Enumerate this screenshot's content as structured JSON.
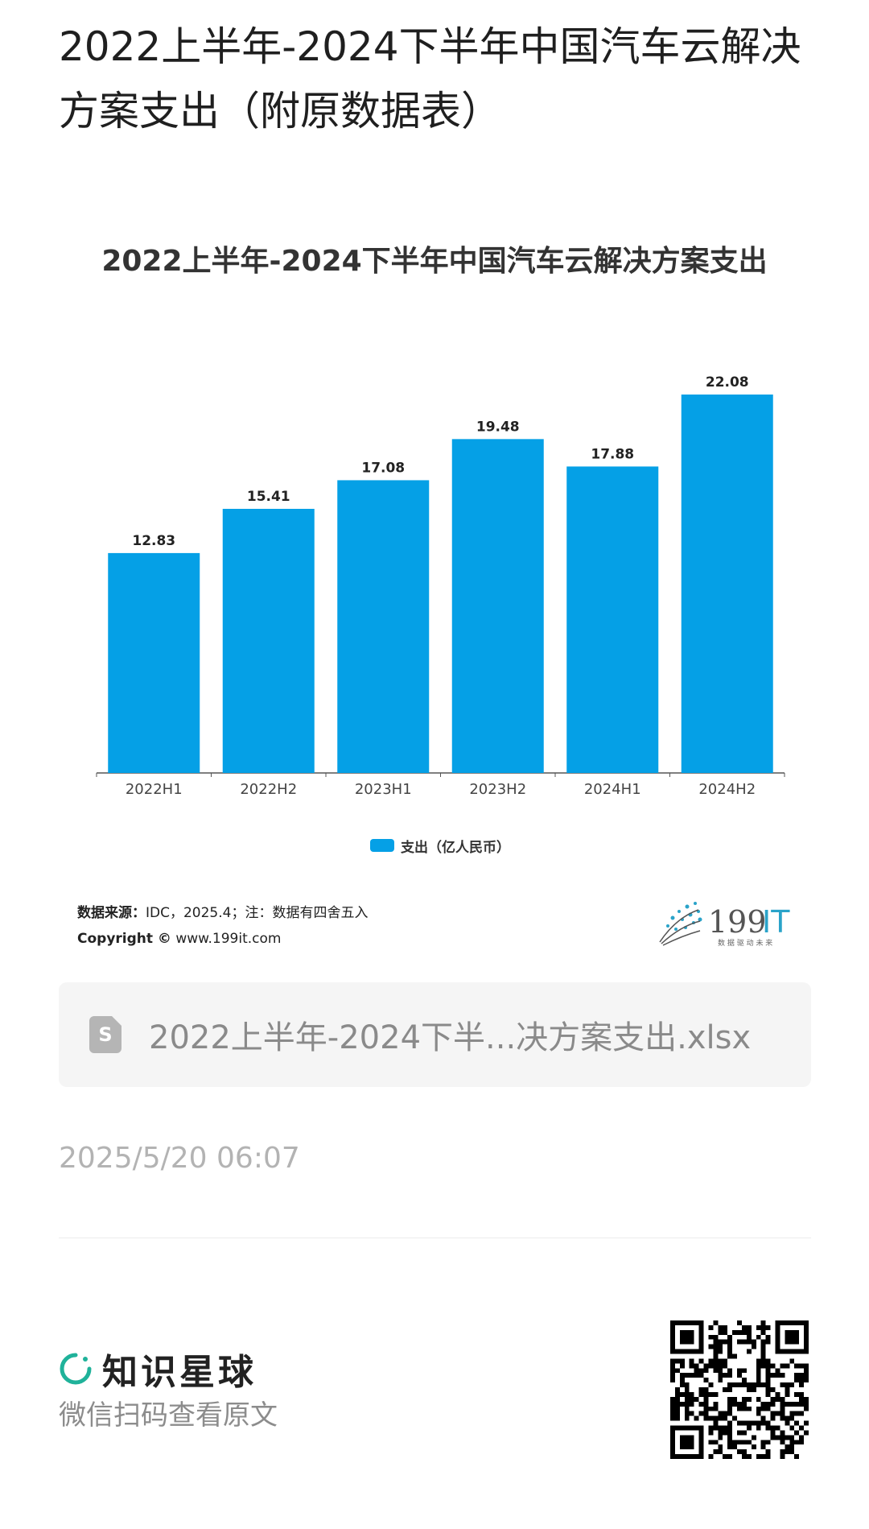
{
  "page": {
    "title": "2022上半年-2024下半年中国汽车云解决方案支出（附原数据表）"
  },
  "chart_data": {
    "type": "bar",
    "title": "2022上半年-2024下半年中国汽车云解决方案支出",
    "categories": [
      "2022H1",
      "2022H2",
      "2023H1",
      "2023H2",
      "2024H1",
      "2024H2"
    ],
    "series": [
      {
        "name": "支出（亿人民币）",
        "values": [
          12.83,
          15.41,
          17.08,
          19.48,
          17.88,
          22.08
        ],
        "color": "#05a0e6"
      }
    ],
    "ylim": [
      0,
      22.08
    ],
    "grid": false,
    "legend": "bottom-center"
  },
  "source": {
    "label": "数据来源：",
    "text": "IDC，2025.4；注：数据有四舍五入",
    "copyright_label": "Copyright ©",
    "copyright_url": "www.199it.com"
  },
  "brand": {
    "name_num": "199",
    "name_it": "IT",
    "tagline": "数 据 驱 动 未 来"
  },
  "file": {
    "icon": "S",
    "name": "2022上半年-2024下半...决方案支出.xlsx"
  },
  "timestamp": "2025/5/20 06:07",
  "footer": {
    "app_name": "知识星球",
    "scan_text": "微信扫码查看原文"
  }
}
